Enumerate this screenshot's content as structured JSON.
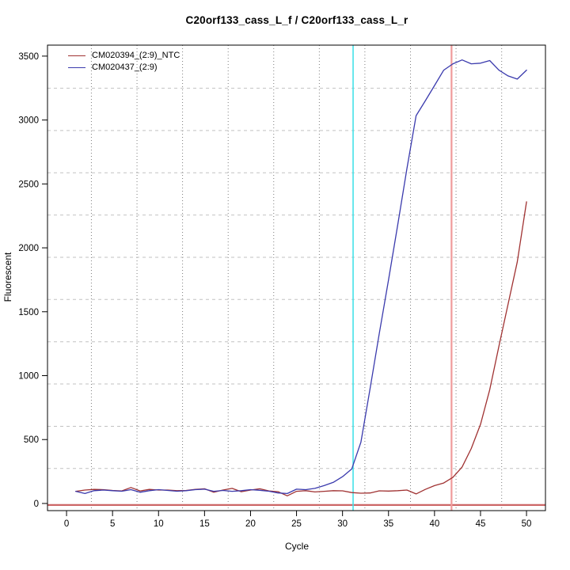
{
  "title": "C20orf133_cass_L_f / C20orf133_cass_L_r",
  "axes": {
    "xlabel": "Cycle",
    "ylabel": "Fluorescent",
    "x_ticks": [
      0,
      5,
      10,
      15,
      20,
      25,
      30,
      35,
      40,
      45,
      50
    ],
    "y_ticks": [
      0,
      500,
      1000,
      1500,
      2000,
      2500,
      3000,
      3500
    ]
  },
  "legend": {
    "entries": [
      {
        "label": "CM020394_(2:9)_NTC",
        "color": "#a03232"
      },
      {
        "label": "CM020437_(2:9)",
        "color": "#3a3aad"
      }
    ]
  },
  "chart_data": {
    "type": "line",
    "title": "C20orf133_cass_L_f / C20orf133_cass_L_r",
    "xlabel": "Cycle",
    "ylabel": "Fluorescent",
    "xlim": [
      -2.07,
      52.06
    ],
    "ylim": [
      -56,
      3586
    ],
    "x": [
      1,
      2,
      3,
      4,
      5,
      6,
      7,
      8,
      9,
      10,
      11,
      12,
      13,
      14,
      15,
      16,
      17,
      18,
      19,
      20,
      21,
      22,
      23,
      24,
      25,
      26,
      27,
      28,
      29,
      30,
      31,
      32,
      33,
      34,
      35,
      36,
      37,
      38,
      39,
      40,
      41,
      42,
      43,
      44,
      45,
      46,
      47,
      48,
      49,
      50
    ],
    "series": [
      {
        "name": "CM020394_(2:9)_NTC",
        "color": "#a03232",
        "values": [
          95,
          105,
          110,
          108,
          102,
          98,
          125,
          98,
          110,
          105,
          105,
          100,
          102,
          110,
          115,
          88,
          105,
          118,
          92,
          105,
          115,
          98,
          92,
          60,
          95,
          100,
          90,
          95,
          100,
          99,
          85,
          80,
          82,
          99,
          97,
          100,
          105,
          75,
          110,
          140,
          160,
          205,
          285,
          430,
          620,
          890,
          1230,
          1560,
          1890,
          2360
        ]
      },
      {
        "name": "CM020437_(2:9)",
        "color": "#3a3aad",
        "values": [
          95,
          78,
          100,
          105,
          100,
          96,
          108,
          88,
          100,
          108,
          102,
          96,
          100,
          108,
          112,
          95,
          102,
          95,
          100,
          108,
          103,
          96,
          82,
          78,
          112,
          108,
          118,
          140,
          165,
          210,
          270,
          480,
          900,
          1330,
          1750,
          2180,
          2620,
          3034,
          3150,
          3270,
          3390,
          3440,
          3470,
          3440,
          3445,
          3465,
          3390,
          3345,
          3320,
          3390
        ]
      }
    ],
    "vlines": [
      {
        "name": "ct-line-sample",
        "x": 31.15,
        "color": "#45e2e8",
        "width": 1.6
      },
      {
        "name": "ct-line-ntc",
        "x": 41.85,
        "color": "#f09b9b",
        "width": 2.2
      }
    ],
    "hlines": [
      {
        "name": "threshold-line",
        "y": -12,
        "color": "#cc6666",
        "width": 2.2
      }
    ],
    "grid": {
      "vertical_x": [
        2.7,
        7.66,
        12.61,
        17.57,
        22.52,
        27.48,
        32.43,
        37.39,
        42.34,
        47.3
      ],
      "horizontal_y": [
        274,
        604,
        935,
        1265,
        1596,
        1926,
        2257,
        2587,
        2918,
        3249
      ],
      "legend_position": "top-left"
    }
  }
}
